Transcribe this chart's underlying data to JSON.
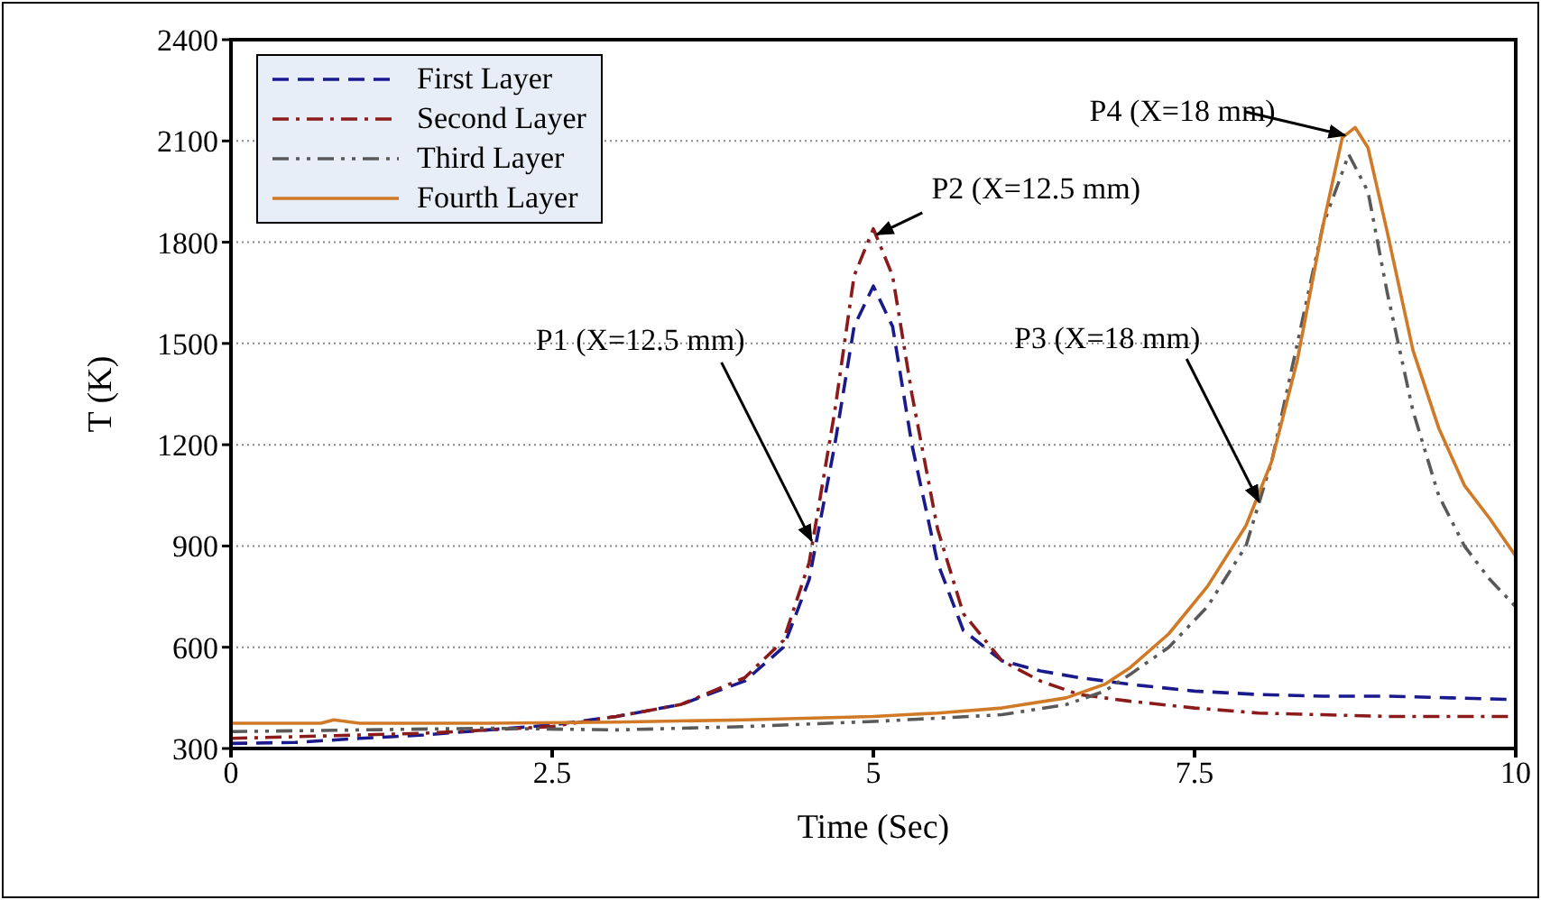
{
  "chart_data": {
    "type": "line",
    "xlabel": "Time (Sec)",
    "ylabel": "T (K)",
    "xlim": [
      0,
      10
    ],
    "xticks": [
      0,
      2.5,
      5,
      7.5,
      10
    ],
    "ylim": [
      300,
      2400
    ],
    "yticks": [
      300,
      600,
      900,
      1200,
      1500,
      1800,
      2100,
      2400
    ],
    "grid": "y",
    "legend": "top left",
    "marker": "none",
    "series": [
      {
        "name": "First Layer",
        "color": "#1a1a8c",
        "line_style": "dashed",
        "x": [
          0,
          0.5,
          1,
          1.5,
          2,
          2.5,
          3,
          3.5,
          4,
          4.3,
          4.5,
          4.7,
          4.85,
          5,
          5.15,
          5.3,
          5.5,
          5.7,
          6,
          6.3,
          6.6,
          7,
          7.5,
          8,
          8.5,
          9,
          9.5,
          10
        ],
        "values": [
          315,
          318,
          330,
          340,
          355,
          370,
          395,
          430,
          500,
          600,
          800,
          1200,
          1550,
          1670,
          1550,
          1200,
          850,
          650,
          560,
          530,
          510,
          490,
          470,
          460,
          455,
          455,
          450,
          445
        ]
      },
      {
        "name": "Second Layer",
        "color": "#8b1a1a",
        "line_style": "dashdot",
        "x": [
          0,
          0.5,
          1,
          1.5,
          2,
          2.5,
          3,
          3.5,
          4,
          4.3,
          4.5,
          4.7,
          4.85,
          5,
          5.15,
          5.3,
          5.5,
          5.7,
          6,
          6.3,
          6.6,
          7,
          7.5,
          8,
          8.5,
          9,
          9.5,
          10
        ],
        "values": [
          330,
          335,
          340,
          345,
          355,
          365,
          395,
          430,
          510,
          620,
          850,
          1300,
          1700,
          1840,
          1700,
          1350,
          950,
          700,
          560,
          500,
          460,
          440,
          420,
          405,
          400,
          395,
          395,
          395
        ]
      },
      {
        "name": "Third Layer",
        "color": "#595959",
        "line_style": "dashdotdot",
        "x": [
          0,
          1,
          2,
          3,
          4,
          5,
          5.5,
          6,
          6.5,
          6.8,
          7,
          7.3,
          7.6,
          7.9,
          8.1,
          8.3,
          8.5,
          8.7,
          8.85,
          9,
          9.2,
          9.4,
          9.6,
          9.8,
          10
        ],
        "values": [
          350,
          355,
          360,
          355,
          365,
          380,
          390,
          400,
          430,
          470,
          520,
          600,
          720,
          900,
          1150,
          1500,
          1850,
          2060,
          1950,
          1650,
          1300,
          1050,
          900,
          800,
          720
        ]
      },
      {
        "name": "Fourth Layer",
        "color": "#d07a28",
        "line_style": "solid",
        "x": [
          0,
          0.7,
          0.8,
          1,
          2,
          3,
          4,
          5,
          5.5,
          6,
          6.5,
          6.8,
          7,
          7.3,
          7.6,
          7.9,
          8.1,
          8.3,
          8.5,
          8.65,
          8.75,
          8.85,
          9,
          9.2,
          9.4,
          9.6,
          9.8,
          10
        ],
        "values": [
          375,
          375,
          385,
          375,
          375,
          378,
          385,
          395,
          405,
          420,
          450,
          490,
          540,
          640,
          780,
          960,
          1150,
          1450,
          1850,
          2110,
          2140,
          2080,
          1830,
          1480,
          1250,
          1080,
          980,
          870
        ]
      }
    ],
    "annotations": [
      {
        "text": "P1 (X=12.5 mm)",
        "x": 4.52,
        "y": 915
      },
      {
        "text": "P2 (X=12.5 mm)",
        "x": 5.03,
        "y": 1823
      },
      {
        "text": "P3 (X=18 mm)",
        "x": 8.0,
        "y": 1032
      },
      {
        "text": "P4 (X=18 mm)",
        "x": 8.67,
        "y": 2117
      }
    ]
  }
}
